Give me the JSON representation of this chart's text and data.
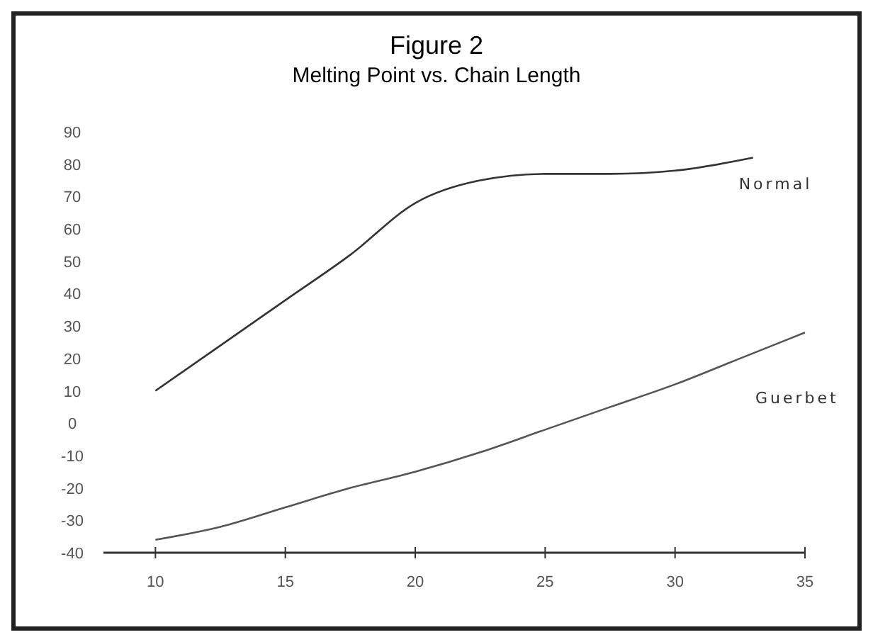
{
  "chart_data": {
    "type": "line",
    "title": "Figure 2",
    "subtitle": "Melting Point vs. Chain Length",
    "series": [
      {
        "name": "Normal",
        "color": "#333333",
        "x": [
          10,
          12.5,
          15,
          17.5,
          20,
          22.5,
          25,
          27.5,
          30,
          33
        ],
        "values": [
          10,
          24,
          38,
          52,
          68,
          75,
          77,
          77,
          78,
          82
        ]
      },
      {
        "name": "Guerbet",
        "color": "#555555",
        "x": [
          10,
          12.5,
          15,
          17.5,
          20,
          22.5,
          25,
          27.5,
          30,
          32.5,
          35
        ],
        "values": [
          -36,
          -32,
          -26,
          -20,
          -15,
          -9,
          -2,
          5,
          12,
          20,
          28
        ]
      }
    ],
    "xlim": [
      8,
      35
    ],
    "xticks": [
      10,
      15,
      20,
      25,
      30,
      35
    ],
    "ylim": [
      -40,
      90
    ],
    "yticks": [
      -40,
      -30,
      -20,
      -10,
      0,
      10,
      20,
      30,
      40,
      50,
      60,
      70,
      80,
      90
    ],
    "grid": false,
    "marker": "none",
    "line_style": "solid"
  }
}
